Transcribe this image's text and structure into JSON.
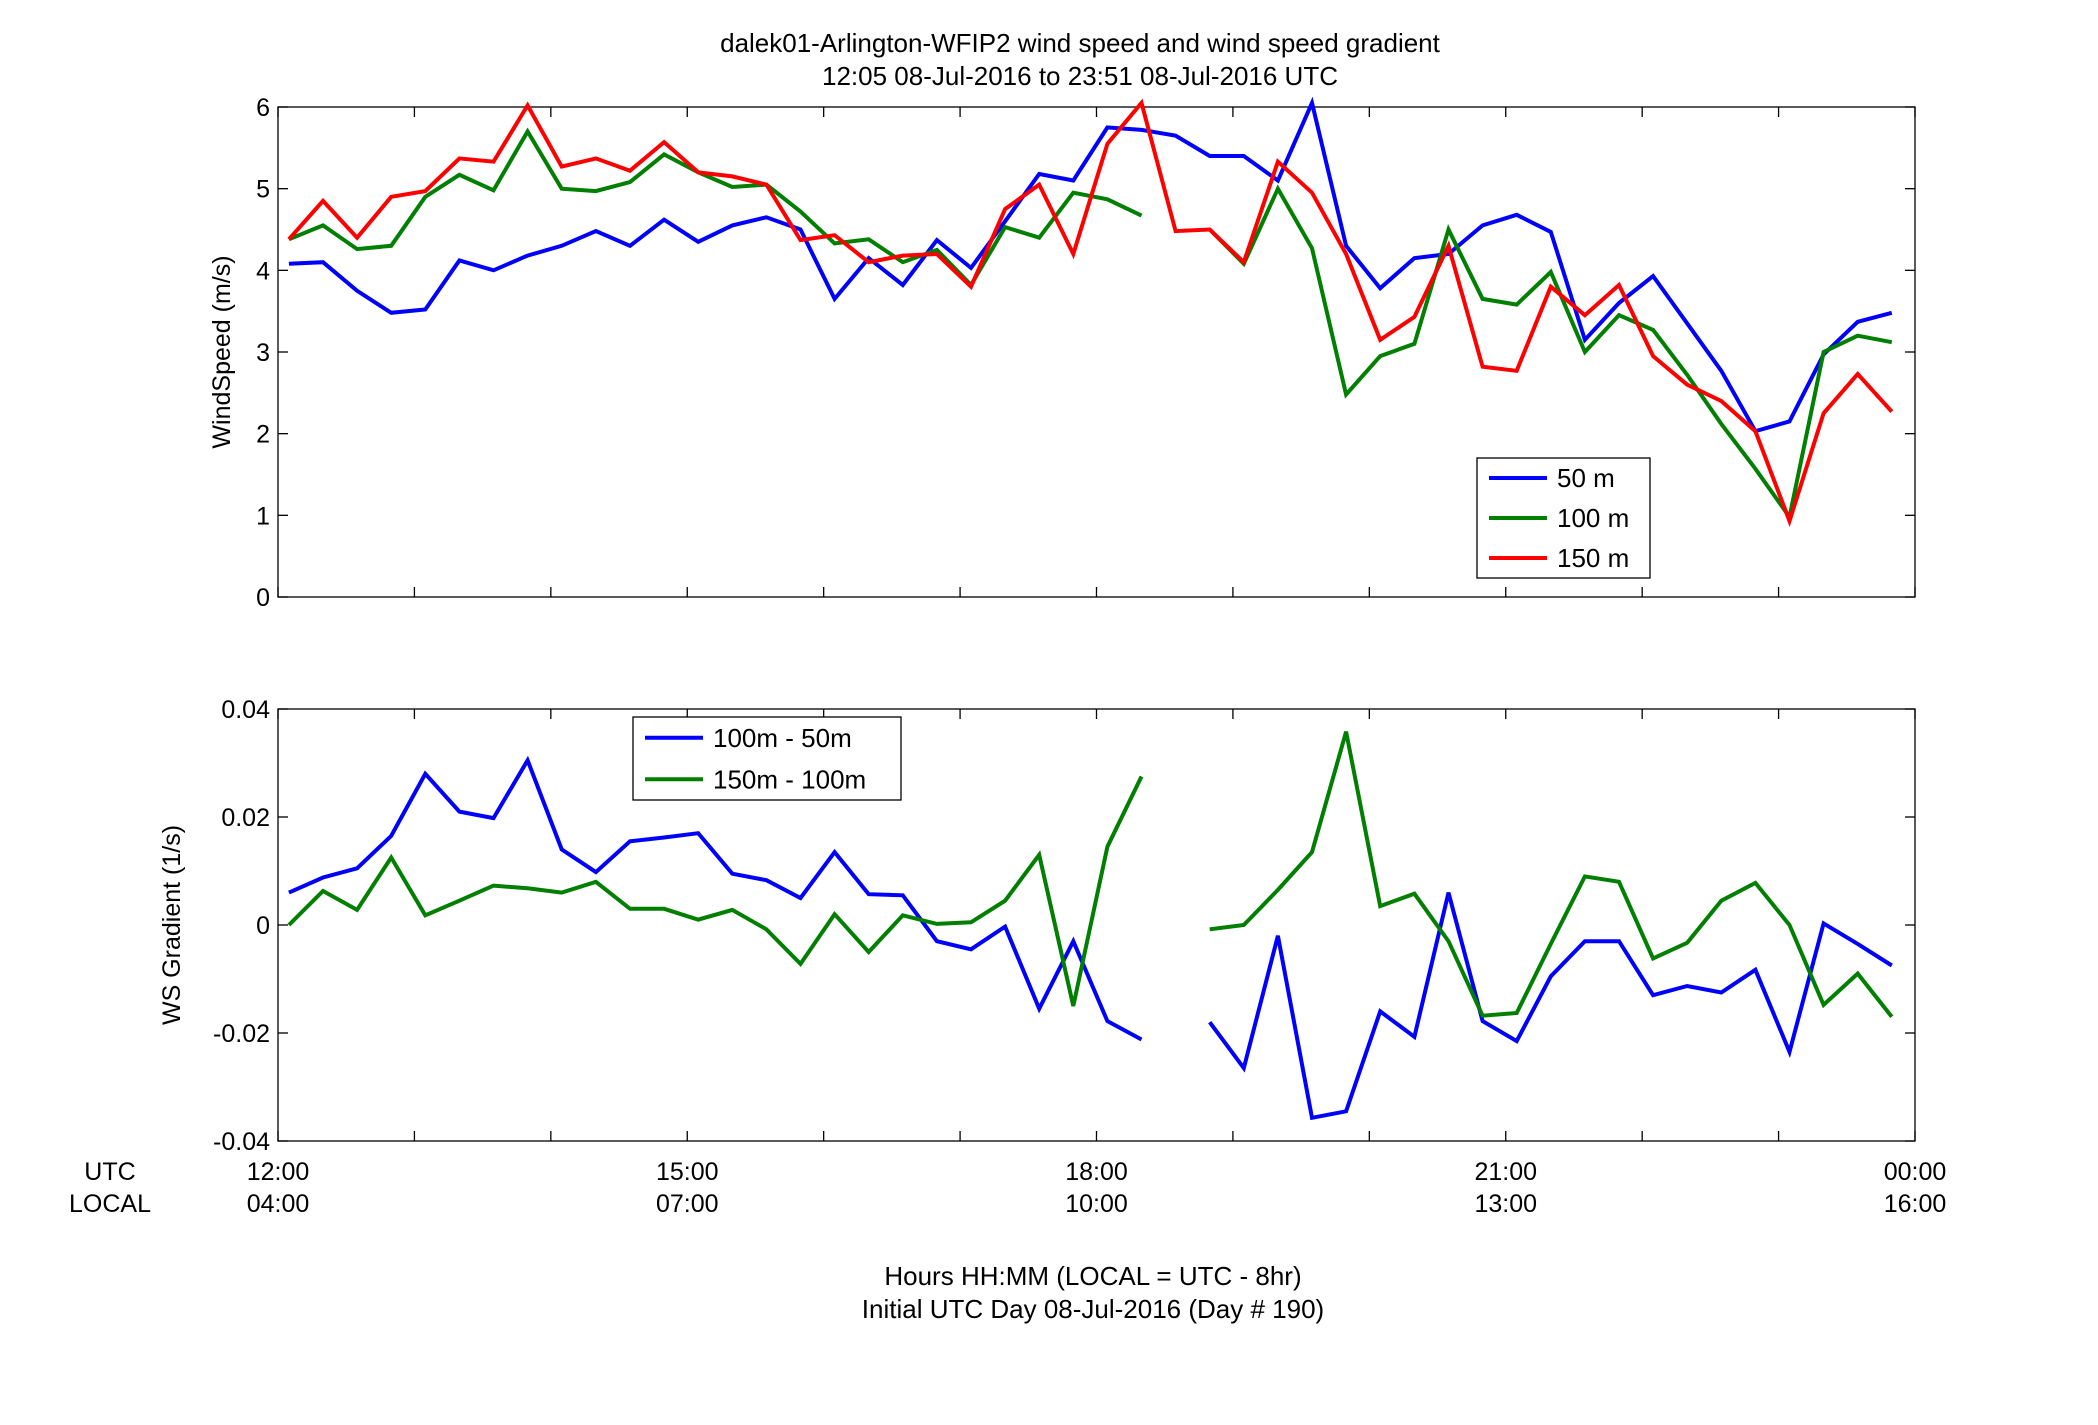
{
  "figure": {
    "title_line1": "dalek01-Arlington-WFIP2  wind speed and wind speed gradient",
    "title_line2": "12:05 08-Jul-2016 to 23:51 08-Jul-2016  UTC",
    "row_label_utc": "UTC",
    "row_label_local": "LOCAL",
    "xlabel_line1": "Hours HH:MM  (LOCAL = UTC - 8hr)",
    "xlabel_line2": "Initial UTC Day 08-Jul-2016 (Day # 190)"
  },
  "chart_data": [
    {
      "type": "line",
      "title": "",
      "ylabel": "WindSpeed (m/s)",
      "xlim": [
        12,
        24
      ],
      "ylim": [
        0,
        6
      ],
      "yticks": [
        "0",
        "1",
        "2",
        "3",
        "4",
        "5",
        "6"
      ],
      "ytick_values": [
        0,
        1,
        2,
        3,
        4,
        5,
        6
      ],
      "xtick_values": [
        12,
        15,
        18,
        21,
        24
      ],
      "xticks_utc": [
        "12:00",
        "15:00",
        "18:00",
        "21:00",
        "00:00"
      ],
      "xticks_local": [
        "04:00",
        "07:00",
        "10:00",
        "13:00",
        "16:00"
      ],
      "grid": false,
      "legend_position": "lower-right",
      "x": [
        12.08,
        12.33,
        12.58,
        12.83,
        13.08,
        13.33,
        13.58,
        13.83,
        14.08,
        14.33,
        14.58,
        14.83,
        15.08,
        15.33,
        15.58,
        15.83,
        16.08,
        16.33,
        16.58,
        16.83,
        17.08,
        17.33,
        17.58,
        17.83,
        18.08,
        18.33,
        18.58,
        18.83,
        19.08,
        19.33,
        19.58,
        19.83,
        20.08,
        20.33,
        20.58,
        20.83,
        21.08,
        21.33,
        21.58,
        21.83,
        22.08,
        22.33,
        22.58,
        22.83,
        23.08,
        23.33,
        23.58,
        23.83
      ],
      "series": [
        {
          "name": "50 m",
          "color": "#0000ff",
          "values": [
            4.08,
            4.1,
            3.75,
            3.48,
            3.52,
            4.12,
            4.0,
            4.18,
            4.3,
            4.48,
            4.3,
            4.62,
            4.35,
            4.55,
            4.65,
            4.5,
            3.65,
            4.15,
            3.82,
            4.37,
            4.03,
            4.6,
            5.18,
            5.1,
            5.75,
            5.72,
            5.65,
            5.4,
            5.4,
            5.1,
            6.05,
            4.3,
            3.78,
            4.15,
            4.2,
            4.55,
            4.68,
            4.47,
            3.15,
            3.6,
            3.93,
            3.35,
            2.77,
            2.03,
            2.15,
            2.97,
            3.37,
            3.48
          ]
        },
        {
          "name": "100 m",
          "color": "#007f00",
          "values": [
            4.38,
            4.55,
            4.26,
            4.3,
            4.9,
            5.17,
            4.98,
            5.7,
            5.0,
            4.97,
            5.08,
            5.42,
            5.2,
            5.02,
            5.05,
            4.72,
            4.33,
            4.38,
            4.1,
            4.25,
            3.82,
            4.53,
            4.4,
            4.95,
            4.87,
            4.67,
            null,
            4.5,
            4.08,
            5.0,
            4.27,
            2.48,
            2.95,
            3.1,
            4.5,
            3.65,
            3.58,
            3.98,
            3.0,
            3.45,
            3.27,
            2.72,
            2.12,
            1.57,
            0.98,
            3.0,
            3.2,
            3.12
          ]
        },
        {
          "name": "150 m",
          "color": "#ff0000",
          "values": [
            4.38,
            4.85,
            4.4,
            4.9,
            4.97,
            5.37,
            5.33,
            6.02,
            5.27,
            5.37,
            5.22,
            5.57,
            5.2,
            5.15,
            5.05,
            4.37,
            4.43,
            4.1,
            4.18,
            4.2,
            3.8,
            4.75,
            5.05,
            4.2,
            5.55,
            6.05,
            4.48,
            4.5,
            4.1,
            5.33,
            4.95,
            4.2,
            3.15,
            3.43,
            4.3,
            2.82,
            2.77,
            3.8,
            3.45,
            3.82,
            2.95,
            2.6,
            2.4,
            2.03,
            0.93,
            2.25,
            2.73,
            2.27
          ]
        }
      ]
    },
    {
      "type": "line",
      "title": "",
      "ylabel": "WS Gradient (1/s)",
      "xlim": [
        12,
        24
      ],
      "ylim": [
        -0.04,
        0.04
      ],
      "yticks": [
        "-0.04",
        "-0.02",
        "0",
        "0.02",
        "0.04"
      ],
      "ytick_values": [
        -0.04,
        -0.02,
        0,
        0.02,
        0.04
      ],
      "xtick_values": [
        12,
        15,
        18,
        21,
        24
      ],
      "xticks_utc": [
        "12:00",
        "15:00",
        "18:00",
        "21:00",
        "00:00"
      ],
      "xticks_local": [
        "04:00",
        "07:00",
        "10:00",
        "13:00",
        "16:00"
      ],
      "grid": false,
      "legend_position": "upper-left",
      "x": [
        12.08,
        12.33,
        12.58,
        12.83,
        13.08,
        13.33,
        13.58,
        13.83,
        14.08,
        14.33,
        14.58,
        14.83,
        15.08,
        15.33,
        15.58,
        15.83,
        16.08,
        16.33,
        16.58,
        16.83,
        17.08,
        17.33,
        17.58,
        17.83,
        18.08,
        18.33,
        18.58,
        18.83,
        19.08,
        19.33,
        19.58,
        19.83,
        20.08,
        20.33,
        20.58,
        20.83,
        21.08,
        21.33,
        21.58,
        21.83,
        22.08,
        22.33,
        22.58,
        22.83,
        23.08,
        23.33,
        23.58,
        23.83
      ],
      "series": [
        {
          "name": "100m - 50m",
          "color": "#0000ff",
          "values": [
            0.006,
            0.0088,
            0.0105,
            0.0165,
            0.028,
            0.021,
            0.0198,
            0.0305,
            0.014,
            0.0098,
            0.0155,
            0.0162,
            0.017,
            0.0095,
            0.0083,
            0.005,
            0.0135,
            0.0057,
            0.0055,
            -0.003,
            -0.0045,
            -0.0003,
            -0.0155,
            -0.003,
            -0.0178,
            -0.0212,
            null,
            -0.018,
            -0.0265,
            -0.002,
            -0.0357,
            -0.0345,
            -0.016,
            -0.0207,
            0.006,
            -0.0178,
            -0.0215,
            -0.0095,
            -0.003,
            -0.003,
            -0.013,
            -0.0113,
            -0.0125,
            -0.0083,
            -0.0235,
            0.0003,
            -0.0035,
            -0.0075
          ]
        },
        {
          "name": "150m - 100m",
          "color": "#007f00",
          "values": [
            0.0,
            0.0063,
            0.0028,
            0.0125,
            0.0018,
            0.0045,
            0.0073,
            0.0068,
            0.006,
            0.008,
            0.003,
            0.003,
            0.001,
            0.0028,
            -0.0008,
            -0.0072,
            0.002,
            -0.005,
            0.0018,
            0.0002,
            0.0005,
            0.0045,
            0.013,
            -0.015,
            0.0145,
            0.0275,
            null,
            -0.0008,
            0.0,
            0.0065,
            0.0135,
            0.0358,
            0.0035,
            0.0058,
            -0.003,
            -0.0168,
            -0.0163,
            -0.0035,
            0.009,
            0.008,
            -0.0062,
            -0.0033,
            0.0045,
            0.0078,
            0.0,
            -0.0148,
            -0.009,
            -0.017
          ]
        }
      ]
    }
  ]
}
